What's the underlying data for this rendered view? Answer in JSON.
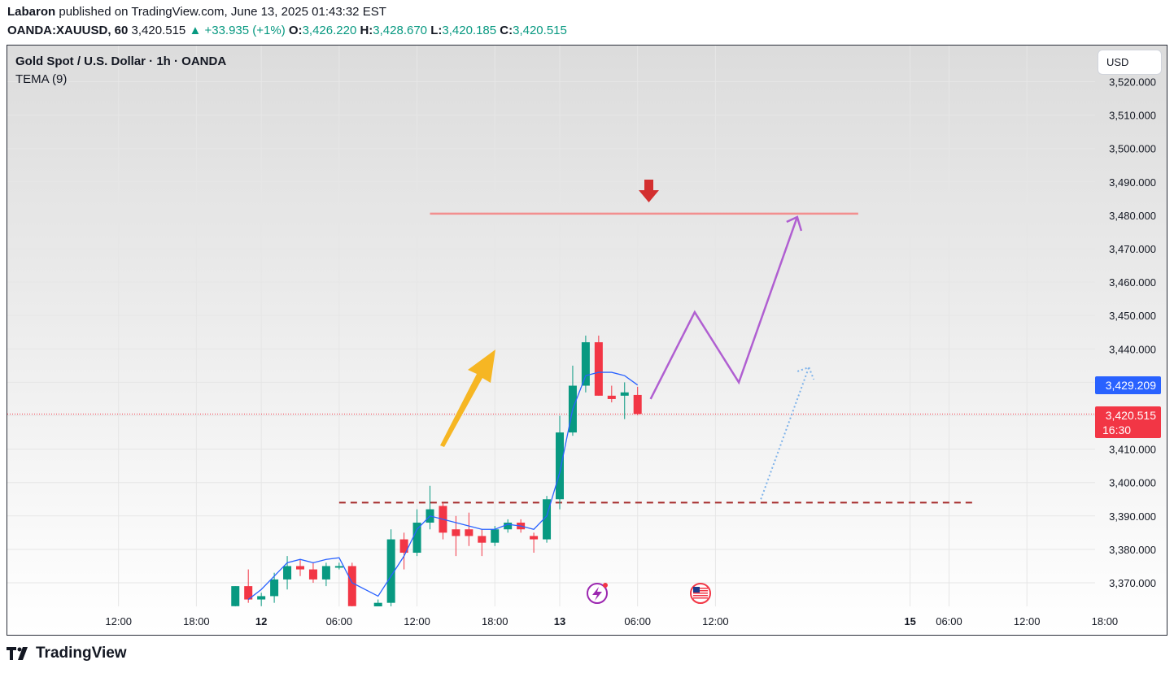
{
  "header": {
    "author": "Labaron",
    "published_text": "published on TradingView.com, June 13, 2025 01:43:32 EST",
    "symbol": "OANDA:XAUUSD, 60",
    "last": "3,420.515",
    "change": "+33.935 (+1%)",
    "o_label": "O:",
    "o": "3,426.220",
    "h_label": "H:",
    "h": "3,428.670",
    "l_label": "L:",
    "l": "3,420.185",
    "c_label": "C:",
    "c": "3,420.515"
  },
  "chart_title": "Gold Spot / U.S. Dollar · 1h · OANDA",
  "indicator_label": "TEMA (9)",
  "currency_button": "USD",
  "tema_price_tag": "3,429.209",
  "last_price_tag": "3,420.515",
  "countdown": "16:30",
  "brand": "TradingView",
  "colors": {
    "up": "#089981",
    "down": "#f23645",
    "tema": "#2962ff",
    "projection": "#b05fd1",
    "resistance": "#f28f8f",
    "support": "#a52a2a",
    "arrow_yellow": "#f6b623",
    "arrow_red": "#d32f2f"
  },
  "chart_data": {
    "type": "candlestick",
    "title": "Gold Spot / U.S. Dollar · 1h · OANDA",
    "ylim": [
      3362,
      3530
    ],
    "y_ticks": [
      {
        "value": 3520,
        "label": "3,520.000"
      },
      {
        "value": 3510,
        "label": "3,510.000"
      },
      {
        "value": 3500,
        "label": "3,500.000"
      },
      {
        "value": 3490,
        "label": "3,490.000"
      },
      {
        "value": 3480,
        "label": "3,480.000"
      },
      {
        "value": 3470,
        "label": "3,470.000"
      },
      {
        "value": 3460,
        "label": "3,460.000"
      },
      {
        "value": 3450,
        "label": "3,450.000"
      },
      {
        "value": 3440,
        "label": "3,440.000"
      },
      {
        "value": 3410,
        "label": "3,410.000"
      },
      {
        "value": 3400,
        "label": "3,400.000"
      },
      {
        "value": 3390,
        "label": "3,390.000"
      },
      {
        "value": 3380,
        "label": "3,380.000"
      },
      {
        "value": 3370,
        "label": "3,370.000"
      }
    ],
    "x_ticks": [
      {
        "slot": -14,
        "label": "12:00",
        "bold": false
      },
      {
        "slot": -8,
        "label": "18:00",
        "bold": false
      },
      {
        "slot": -3,
        "label": "12",
        "bold": true
      },
      {
        "slot": 3,
        "label": "06:00",
        "bold": false
      },
      {
        "slot": 9,
        "label": "12:00",
        "bold": false
      },
      {
        "slot": 15,
        "label": "18:00",
        "bold": false
      },
      {
        "slot": 20,
        "label": "13",
        "bold": true
      },
      {
        "slot": 26,
        "label": "06:00",
        "bold": false
      },
      {
        "slot": 32,
        "label": "12:00",
        "bold": false
      },
      {
        "slot": 47,
        "label": "15",
        "bold": true
      },
      {
        "slot": 50,
        "label": "06:00",
        "bold": false
      },
      {
        "slot": 56,
        "label": "12:00",
        "bold": false
      },
      {
        "slot": 62,
        "label": "18:00",
        "bold": false
      }
    ],
    "candles": [
      {
        "slot": -5,
        "o": 3363,
        "h": 3369,
        "l": 3362,
        "c": 3369
      },
      {
        "slot": -4,
        "o": 3369,
        "h": 3374,
        "l": 3364,
        "c": 3365
      },
      {
        "slot": -3,
        "o": 3365,
        "h": 3367,
        "l": 3363,
        "c": 3366
      },
      {
        "slot": -2,
        "o": 3366,
        "h": 3373,
        "l": 3364,
        "c": 3371
      },
      {
        "slot": -1,
        "o": 3371,
        "h": 3378,
        "l": 3368,
        "c": 3375
      },
      {
        "slot": 0,
        "o": 3375,
        "h": 3377,
        "l": 3372,
        "c": 3374
      },
      {
        "slot": 1,
        "o": 3374,
        "h": 3376,
        "l": 3370,
        "c": 3371
      },
      {
        "slot": 2,
        "o": 3371,
        "h": 3376,
        "l": 3369,
        "c": 3375
      },
      {
        "slot": 3,
        "o": 3375,
        "h": 3376,
        "l": 3374,
        "c": 3375
      },
      {
        "slot": 4,
        "o": 3375,
        "h": 3376,
        "l": 3362,
        "c": 3363
      },
      {
        "slot": 6,
        "o": 3362,
        "h": 3365,
        "l": 3362,
        "c": 3364
      },
      {
        "slot": 7,
        "o": 3364,
        "h": 3386,
        "l": 3362,
        "c": 3383
      },
      {
        "slot": 8,
        "o": 3383,
        "h": 3385,
        "l": 3374,
        "c": 3379
      },
      {
        "slot": 9,
        "o": 3379,
        "h": 3392,
        "l": 3378,
        "c": 3388
      },
      {
        "slot": 10,
        "o": 3388,
        "h": 3399,
        "l": 3386,
        "c": 3392
      },
      {
        "slot": 11,
        "o": 3393,
        "h": 3394,
        "l": 3383,
        "c": 3385
      },
      {
        "slot": 12,
        "o": 3386,
        "h": 3390,
        "l": 3378,
        "c": 3384
      },
      {
        "slot": 13,
        "o": 3386,
        "h": 3391,
        "l": 3381,
        "c": 3384
      },
      {
        "slot": 14,
        "o": 3384,
        "h": 3386,
        "l": 3378,
        "c": 3382
      },
      {
        "slot": 15,
        "o": 3382,
        "h": 3387,
        "l": 3381,
        "c": 3386
      },
      {
        "slot": 16,
        "o": 3386,
        "h": 3389,
        "l": 3385,
        "c": 3388
      },
      {
        "slot": 17,
        "o": 3388,
        "h": 3389,
        "l": 3385,
        "c": 3386
      },
      {
        "slot": 18,
        "o": 3384,
        "h": 3385,
        "l": 3379,
        "c": 3383
      },
      {
        "slot": 19,
        "o": 3383,
        "h": 3396,
        "l": 3382,
        "c": 3395
      },
      {
        "slot": 20,
        "o": 3395,
        "h": 3420,
        "l": 3392,
        "c": 3415
      },
      {
        "slot": 21,
        "o": 3415,
        "h": 3435,
        "l": 3414,
        "c": 3429
      },
      {
        "slot": 22,
        "o": 3429,
        "h": 3444,
        "l": 3427,
        "c": 3442
      },
      {
        "slot": 23,
        "o": 3442,
        "h": 3444,
        "l": 3426,
        "c": 3426
      },
      {
        "slot": 24,
        "o": 3426,
        "h": 3429,
        "l": 3424,
        "c": 3425
      },
      {
        "slot": 25,
        "o": 3426,
        "h": 3430,
        "l": 3419,
        "c": 3427
      },
      {
        "slot": 26,
        "o": 3426.22,
        "h": 3428.67,
        "l": 3420.185,
        "c": 3420.515
      }
    ],
    "tema": [
      {
        "slot": -4,
        "v": 3365
      },
      {
        "slot": -3,
        "v": 3368
      },
      {
        "slot": -2,
        "v": 3372
      },
      {
        "slot": -1,
        "v": 3376
      },
      {
        "slot": 0,
        "v": 3377
      },
      {
        "slot": 1,
        "v": 3376
      },
      {
        "slot": 2,
        "v": 3377
      },
      {
        "slot": 3,
        "v": 3377.5
      },
      {
        "slot": 4,
        "v": 3370
      },
      {
        "slot": 6,
        "v": 3366
      },
      {
        "slot": 7,
        "v": 3372
      },
      {
        "slot": 8,
        "v": 3378
      },
      {
        "slot": 9,
        "v": 3386
      },
      {
        "slot": 10,
        "v": 3390
      },
      {
        "slot": 11,
        "v": 3389
      },
      {
        "slot": 12,
        "v": 3388
      },
      {
        "slot": 13,
        "v": 3387
      },
      {
        "slot": 14,
        "v": 3386
      },
      {
        "slot": 15,
        "v": 3386
      },
      {
        "slot": 16,
        "v": 3387.5
      },
      {
        "slot": 17,
        "v": 3387
      },
      {
        "slot": 18,
        "v": 3386
      },
      {
        "slot": 19,
        "v": 3390
      },
      {
        "slot": 20,
        "v": 3403
      },
      {
        "slot": 21,
        "v": 3422
      },
      {
        "slot": 22,
        "v": 3432
      },
      {
        "slot": 23,
        "v": 3433
      },
      {
        "slot": 24,
        "v": 3433
      },
      {
        "slot": 25,
        "v": 3432
      },
      {
        "slot": 26,
        "v": 3429.2
      }
    ],
    "annotations": {
      "resistance_level": {
        "value": 3480.5,
        "from_slot": 10,
        "to_slot": 43
      },
      "support_level": {
        "value": 3394,
        "from_slot": 3,
        "to_slot": 52
      },
      "last_price_line": 3420.515,
      "projection_path": [
        {
          "slot": 27,
          "v": 3425
        },
        {
          "slot": 30.4,
          "v": 3451
        },
        {
          "slot": 33.8,
          "v": 3430
        },
        {
          "slot": 38.3,
          "v": 3479.5
        }
      ],
      "dotted_path": [
        {
          "slot": 35.5,
          "v": 3395
        },
        {
          "slot": 39.2,
          "v": 3434.5
        }
      ]
    }
  }
}
